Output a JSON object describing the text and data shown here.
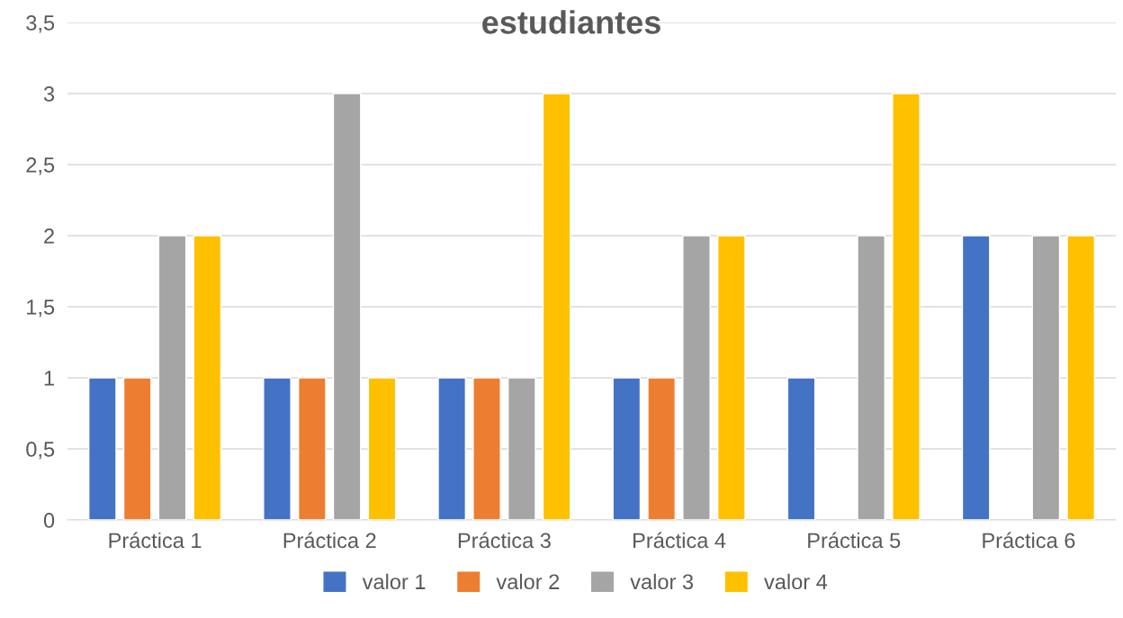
{
  "chart_data": {
    "type": "bar",
    "title": "estudiantes",
    "categories": [
      "Práctica 1",
      "Práctica 2",
      "Práctica 3",
      "Práctica 4",
      "Práctica 5",
      "Práctica 6"
    ],
    "series": [
      {
        "name": "valor 1",
        "color": "#4472c4",
        "values": [
          1,
          1,
          1,
          1,
          1,
          2
        ]
      },
      {
        "name": "valor 2",
        "color": "#ed7d31",
        "values": [
          1,
          1,
          1,
          1,
          null,
          null
        ]
      },
      {
        "name": "valor 3",
        "color": "#a5a5a5",
        "values": [
          2,
          3,
          1,
          2,
          2,
          2
        ]
      },
      {
        "name": "valor 4",
        "color": "#ffc000",
        "values": [
          2,
          1,
          3,
          2,
          3,
          2
        ]
      }
    ],
    "ylim": [
      0,
      3.5
    ],
    "yticks": [
      0,
      {
        "value": 0.5,
        "label": "0,5"
      },
      1,
      {
        "value": 1.5,
        "label": "1,5"
      },
      2,
      {
        "value": 2.5,
        "label": "2,5"
      },
      3,
      {
        "value": 3.5,
        "label": "3,5"
      }
    ],
    "grid": "y",
    "legend": "bottom"
  }
}
